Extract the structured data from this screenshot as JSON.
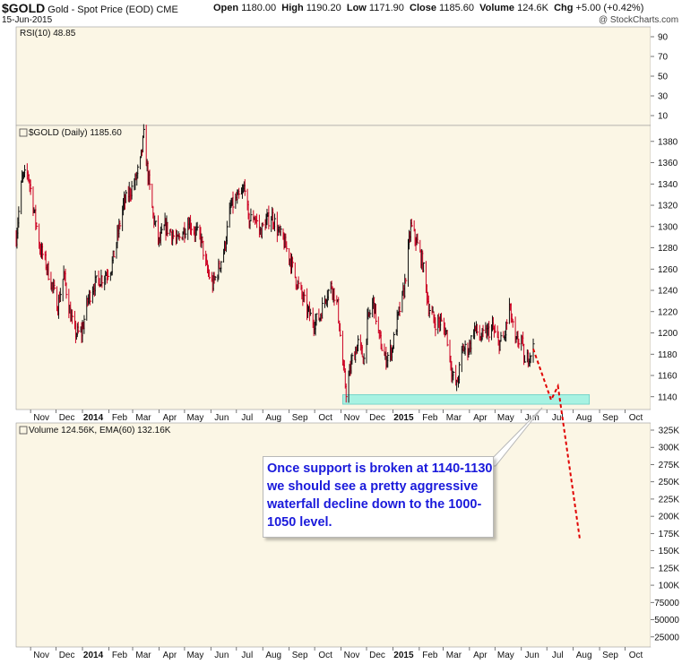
{
  "header": {
    "symbol": "$GOLD",
    "name": "Gold - Spot Price (EOD)",
    "exchange": "CME",
    "date": "15-Jun-2015",
    "open_label": "Open",
    "open": "1180.00",
    "high_label": "High",
    "high": "1190.20",
    "low_label": "Low",
    "low": "1171.90",
    "close_label": "Close",
    "close": "1185.60",
    "volume_label": "Volume",
    "volume": "124.6K",
    "chg_label": "Chg",
    "chg": "+5.00 (+0.42%)",
    "watermark": "@ StockCharts.com"
  },
  "annotation": {
    "text": "Once support is broken at 1140-1130 we should see a pretty aggressive waterfall decline down to the 1000-1050 level."
  },
  "colors": {
    "panel_bg": "#fbf6e5",
    "up": "#111111",
    "down": "#cc0022",
    "support_fill": "#9ef2e2",
    "projection": "#e00000",
    "annotation_text": "#1a1adb"
  },
  "chart_data": [
    {
      "type": "line",
      "panel": "rsi",
      "title": "RSI(10) 48.85",
      "indicator": "RSI(10)",
      "last_value": 48.85,
      "ylim": [
        0,
        100
      ],
      "y_ticks": [
        90,
        70,
        50,
        30,
        10
      ],
      "series": []
    },
    {
      "type": "candlestick",
      "panel": "price",
      "title": "$GOLD (Daily) 1185.60",
      "last_close": 1185.6,
      "ylim": [
        1128,
        1395
      ],
      "y_ticks": [
        1380,
        1360,
        1340,
        1320,
        1300,
        1280,
        1260,
        1240,
        1220,
        1200,
        1180,
        1160,
        1140
      ],
      "x_ticks": [
        "Nov",
        "Dec",
        "2014",
        "Feb",
        "Mar",
        "Apr",
        "May",
        "Jun",
        "Jul",
        "Aug",
        "Sep",
        "Oct",
        "Nov",
        "Dec",
        "2015",
        "Feb",
        "Mar",
        "Apr",
        "May",
        "Jun",
        "Jul",
        "Aug",
        "Sep",
        "Oct"
      ],
      "x_range": [
        "2013-10-15",
        "2015-10-31"
      ],
      "close_path": [
        [
          "2013-10-15",
          1290
        ],
        [
          "2013-10-22",
          1345
        ],
        [
          "2013-10-29",
          1350
        ],
        [
          "2013-11-05",
          1315
        ],
        [
          "2013-11-12",
          1280
        ],
        [
          "2013-11-19",
          1265
        ],
        [
          "2013-11-26",
          1245
        ],
        [
          "2013-12-03",
          1225
        ],
        [
          "2013-12-10",
          1255
        ],
        [
          "2013-12-17",
          1220
        ],
        [
          "2013-12-23",
          1200
        ],
        [
          "2013-12-31",
          1200
        ],
        [
          "2014-01-07",
          1230
        ],
        [
          "2014-01-14",
          1245
        ],
        [
          "2014-01-21",
          1250
        ],
        [
          "2014-01-28",
          1255
        ],
        [
          "2014-02-04",
          1262
        ],
        [
          "2014-02-11",
          1290
        ],
        [
          "2014-02-18",
          1320
        ],
        [
          "2014-02-25",
          1332
        ],
        [
          "2014-03-03",
          1340
        ],
        [
          "2014-03-10",
          1360
        ],
        [
          "2014-03-14",
          1385
        ],
        [
          "2014-03-18",
          1355
        ],
        [
          "2014-03-25",
          1310
        ],
        [
          "2014-04-01",
          1285
        ],
        [
          "2014-04-08",
          1300
        ],
        [
          "2014-04-15",
          1295
        ],
        [
          "2014-04-22",
          1285
        ],
        [
          "2014-04-29",
          1295
        ],
        [
          "2014-05-06",
          1305
        ],
        [
          "2014-05-13",
          1295
        ],
        [
          "2014-05-20",
          1290
        ],
        [
          "2014-05-27",
          1260
        ],
        [
          "2014-06-03",
          1245
        ],
        [
          "2014-06-10",
          1260
        ],
        [
          "2014-06-17",
          1280
        ],
        [
          "2014-06-24",
          1318
        ],
        [
          "2014-07-01",
          1325
        ],
        [
          "2014-07-08",
          1330
        ],
        [
          "2014-07-11",
          1340
        ],
        [
          "2014-07-15",
          1305
        ],
        [
          "2014-07-22",
          1310
        ],
        [
          "2014-07-29",
          1295
        ],
        [
          "2014-08-05",
          1305
        ],
        [
          "2014-08-12",
          1310
        ],
        [
          "2014-08-19",
          1295
        ],
        [
          "2014-08-26",
          1285
        ],
        [
          "2014-09-02",
          1270
        ],
        [
          "2014-09-09",
          1250
        ],
        [
          "2014-09-16",
          1235
        ],
        [
          "2014-09-23",
          1220
        ],
        [
          "2014-09-30",
          1210
        ],
        [
          "2014-10-07",
          1215
        ],
        [
          "2014-10-14",
          1235
        ],
        [
          "2014-10-21",
          1245
        ],
        [
          "2014-10-28",
          1225
        ],
        [
          "2014-11-03",
          1170
        ],
        [
          "2014-11-07",
          1145
        ],
        [
          "2014-11-14",
          1175
        ],
        [
          "2014-11-21",
          1190
        ],
        [
          "2014-11-28",
          1175
        ],
        [
          "2014-12-02",
          1210
        ],
        [
          "2014-12-09",
          1230
        ],
        [
          "2014-12-16",
          1195
        ],
        [
          "2014-12-23",
          1175
        ],
        [
          "2014-12-31",
          1185
        ],
        [
          "2015-01-07",
          1215
        ],
        [
          "2015-01-14",
          1240
        ],
        [
          "2015-01-22",
          1300
        ],
        [
          "2015-01-29",
          1285
        ],
        [
          "2015-02-05",
          1265
        ],
        [
          "2015-02-12",
          1225
        ],
        [
          "2015-02-19",
          1210
        ],
        [
          "2015-02-26",
          1210
        ],
        [
          "2015-03-05",
          1200
        ],
        [
          "2015-03-12",
          1160
        ],
        [
          "2015-03-17",
          1150
        ],
        [
          "2015-03-24",
          1185
        ],
        [
          "2015-03-31",
          1185
        ],
        [
          "2015-04-07",
          1205
        ],
        [
          "2015-04-14",
          1195
        ],
        [
          "2015-04-21",
          1200
        ],
        [
          "2015-04-28",
          1205
        ],
        [
          "2015-05-05",
          1190
        ],
        [
          "2015-05-12",
          1195
        ],
        [
          "2015-05-18",
          1225
        ],
        [
          "2015-05-25",
          1190
        ],
        [
          "2015-06-01",
          1195
        ],
        [
          "2015-06-05",
          1170
        ],
        [
          "2015-06-10",
          1180
        ],
        [
          "2015-06-15",
          1185.6
        ]
      ],
      "support_zone": {
        "from": "2014-11-03",
        "to": "2015-08-20",
        "low": 1133,
        "high": 1142
      },
      "projection_path": [
        [
          "2015-06-15",
          1185
        ],
        [
          "2015-07-06",
          1137
        ],
        [
          "2015-07-14",
          1150
        ],
        [
          "2015-08-09",
          1005
        ]
      ]
    },
    {
      "type": "bar",
      "panel": "volume",
      "title": "Volume 124.56K, EMA(60) 132.16K",
      "series": [
        {
          "name": "Volume",
          "last_value": "124.56K"
        },
        {
          "name": "EMA(60)",
          "last_value": "132.16K"
        }
      ],
      "ylim": [
        0,
        325000
      ],
      "y_ticks": [
        "325K",
        "300K",
        "275K",
        "250K",
        "225K",
        "200K",
        "175K",
        "150K",
        "125K",
        "100K",
        "75000",
        "50000",
        "25000"
      ],
      "x_ticks": [
        "Nov",
        "Dec",
        "2014",
        "Feb",
        "Mar",
        "Apr",
        "May",
        "Jun",
        "Jul",
        "Aug",
        "Sep",
        "Oct",
        "Nov",
        "Dec",
        "2015",
        "Feb",
        "Mar",
        "Apr",
        "May",
        "Jun",
        "Jul",
        "Aug",
        "Sep",
        "Oct"
      ]
    }
  ]
}
